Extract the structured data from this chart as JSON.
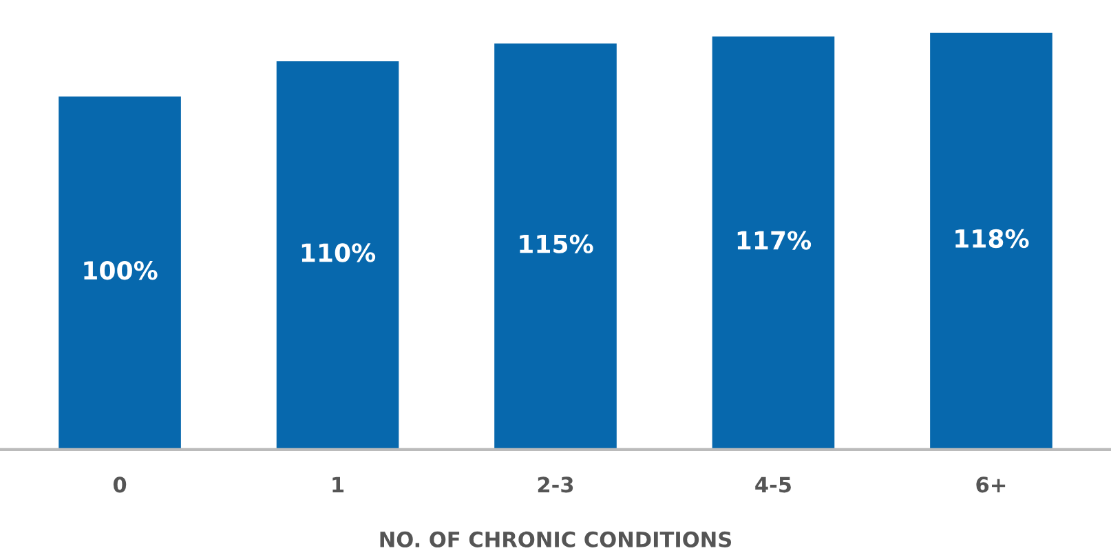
{
  "chart_data": {
    "type": "bar",
    "xlabel": "NO. OF CHRONIC CONDITIONS",
    "categories": [
      "0",
      "1",
      "2-3",
      "4-5",
      "6+"
    ],
    "values": [
      100,
      110,
      115,
      117,
      118
    ],
    "value_labels": [
      "100%",
      "110%",
      "115%",
      "117%",
      "118%"
    ],
    "color": "#0768ad",
    "grid": false,
    "tick_labels": "x"
  }
}
